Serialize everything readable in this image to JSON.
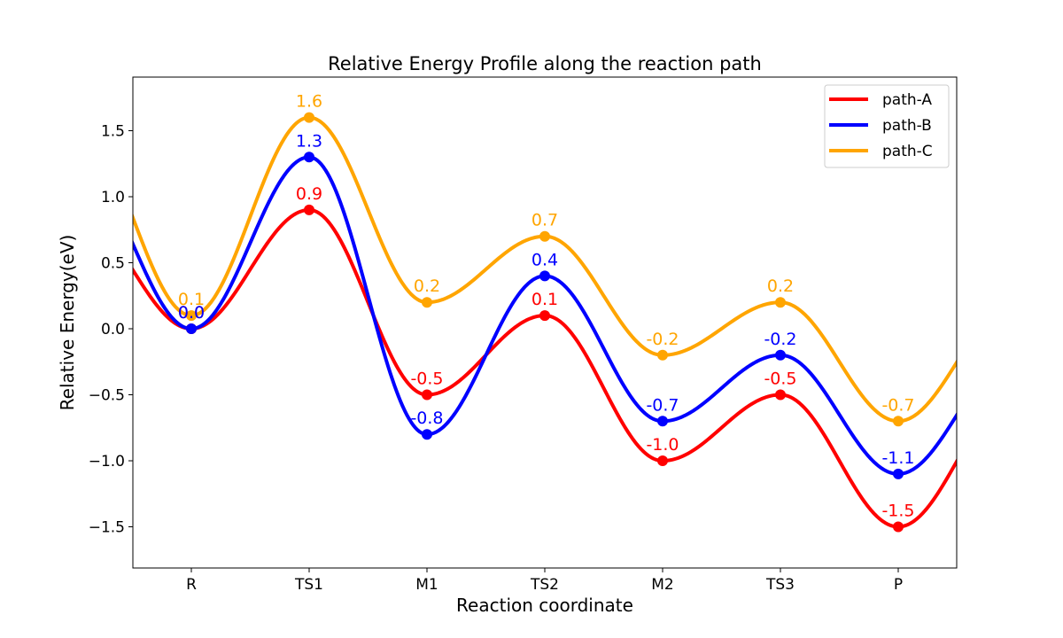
{
  "chart_data": {
    "type": "line",
    "title": "Relative Energy Profile along the reaction path",
    "xlabel": "Reaction coordinate",
    "ylabel": "Relative Energy(eV)",
    "categories": [
      "R",
      "TS1",
      "M1",
      "TS2",
      "M2",
      "TS3",
      "P"
    ],
    "ylim": [
      -1.8,
      1.9
    ],
    "yticks": [
      -1.5,
      -1.0,
      -0.5,
      0.0,
      0.5,
      1.0,
      1.5
    ],
    "ytick_labels": [
      "−1.5",
      "−1.0",
      "−0.5",
      "0.0",
      "0.5",
      "1.0",
      "1.5"
    ],
    "grid": false,
    "legend_position": "top-right",
    "series": [
      {
        "name": "path-A",
        "color": "#ff0000",
        "values": [
          0.0,
          0.9,
          -0.5,
          0.1,
          -1.0,
          -0.5,
          -1.5
        ],
        "labels": [
          "0.0",
          "0.9",
          "-0.5",
          "0.1",
          "-1.0",
          "-0.5",
          "-1.5"
        ]
      },
      {
        "name": "path-B",
        "color": "#0000ff",
        "values": [
          0.0,
          1.3,
          -0.8,
          0.4,
          -0.7,
          -0.2,
          -1.1
        ],
        "labels": [
          "0.0",
          "1.3",
          "-0.8",
          "0.4",
          "-0.7",
          "-0.2",
          "-1.1"
        ]
      },
      {
        "name": "path-C",
        "color": "#ffa500",
        "values": [
          0.1,
          1.6,
          0.2,
          0.7,
          -0.2,
          0.2,
          -0.7
        ],
        "labels": [
          "0.1",
          "1.6",
          "0.2",
          "0.7",
          "-0.2",
          "0.2",
          "-0.7"
        ]
      }
    ]
  }
}
